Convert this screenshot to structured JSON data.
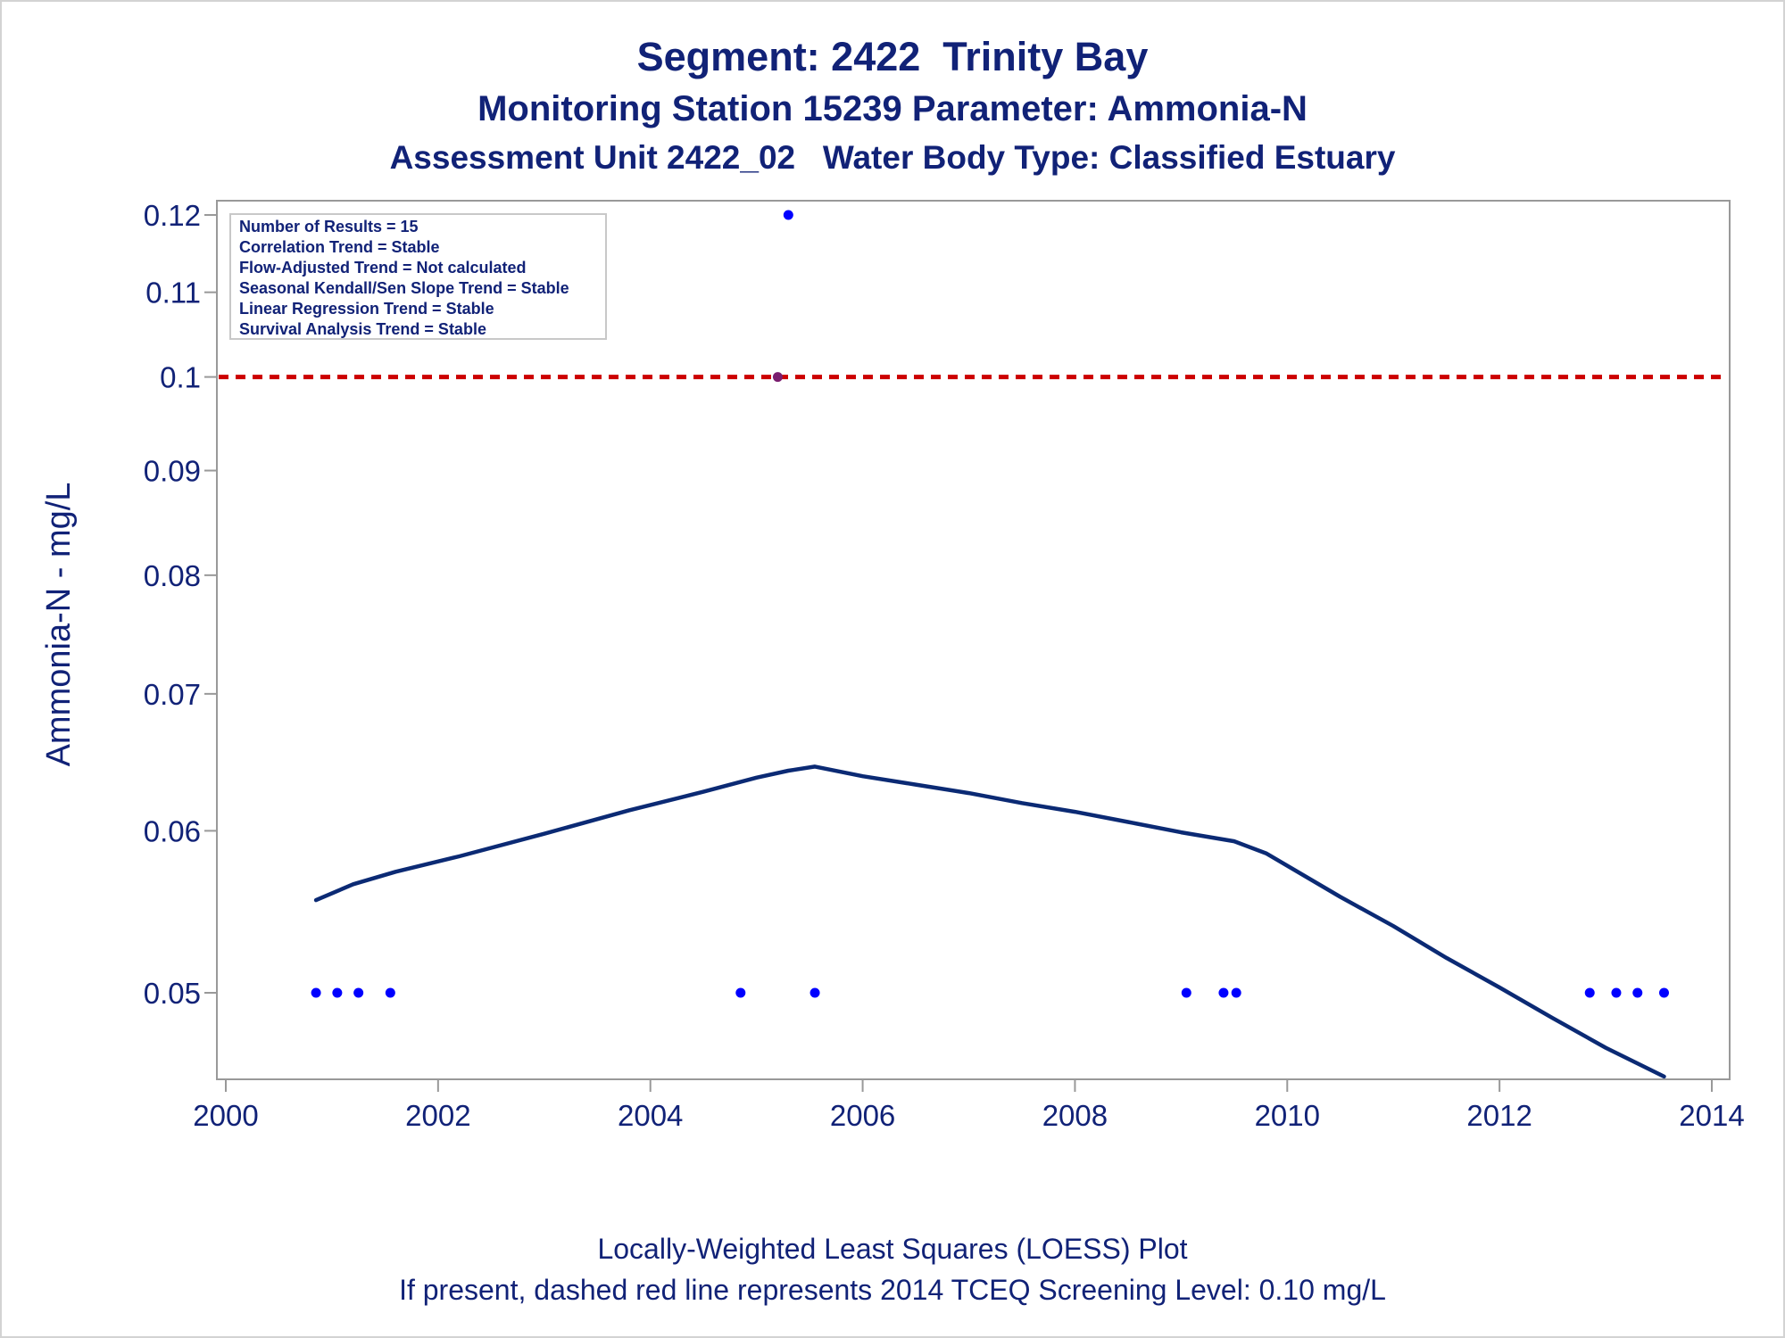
{
  "title_lines": [
    "Segment: 2422  Trinity Bay",
    "Monitoring Station 15239 Parameter: Ammonia-N",
    "Assessment Unit 2422_02   Water Body Type: Classified Estuary"
  ],
  "footnotes": [
    "Locally-Weighted Least Squares (LOESS) Plot",
    "If present, dashed red line represents 2014 TCEQ Screening Level: 0.10 mg/L"
  ],
  "stats_box": [
    "Number of Results = 15",
    "Correlation Trend = Stable",
    "Flow-Adjusted Trend = Not calculated",
    "Seasonal Kendall/Sen Slope Trend = Stable",
    "Linear Regression Trend = Stable",
    "Survival Analysis Trend = Stable"
  ],
  "colors": {
    "text": "#112277",
    "points": "#0000ff",
    "loess": "#0b2a74",
    "screening_line": "#cc0000",
    "axis": "#999999"
  },
  "chart_data": {
    "type": "scatter",
    "title": "Segment: 2422  Trinity Bay",
    "xlabel": "",
    "ylabel": "Ammonia-N - mg/L",
    "y_scale": "log",
    "xlim": [
      2000,
      2014
    ],
    "ylim": [
      0.046,
      0.121
    ],
    "x_ticks": [
      "2000",
      "2002",
      "2004",
      "2006",
      "2008",
      "2010",
      "2012",
      "2014"
    ],
    "y_ticks": [
      "0.05",
      "0.06",
      "0.07",
      "0.08",
      "0.09",
      "0.1",
      "0.11",
      "0.12"
    ],
    "grid": false,
    "legend_position": "top-left",
    "series": [
      {
        "type": "scatter",
        "x": [
          2000.85,
          2001.05,
          2001.25,
          2001.55,
          2004.85,
          2005.2,
          2005.3,
          2005.55,
          2009.05,
          2009.4,
          2009.52,
          2012.85,
          2013.1,
          2013.3,
          2013.55
        ],
        "y": [
          0.05,
          0.05,
          0.05,
          0.05,
          0.05,
          0.1,
          0.12,
          0.05,
          0.05,
          0.05,
          0.05,
          0.05,
          0.05,
          0.05,
          0.05
        ]
      },
      {
        "type": "line",
        "x": [
          2000.85,
          2001.2,
          2001.6,
          2002.2,
          2003.0,
          2003.8,
          2004.5,
          2005.0,
          2005.3,
          2005.55,
          2006.0,
          2006.5,
          2007.0,
          2007.5,
          2008.0,
          2008.5,
          2009.0,
          2009.5,
          2009.8,
          2010.5,
          2011.0,
          2011.5,
          2012.0,
          2012.5,
          2013.0,
          2013.55
        ],
        "y": [
          0.0555,
          0.0565,
          0.0573,
          0.0583,
          0.0598,
          0.0614,
          0.0627,
          0.0637,
          0.0642,
          0.0645,
          0.0638,
          0.0632,
          0.0626,
          0.0619,
          0.0613,
          0.0606,
          0.0599,
          0.0593,
          0.0585,
          0.0557,
          0.0539,
          0.052,
          0.0503,
          0.0486,
          0.047,
          0.0455
        ]
      },
      {
        "type": "hline",
        "y": 0.1
      }
    ]
  }
}
